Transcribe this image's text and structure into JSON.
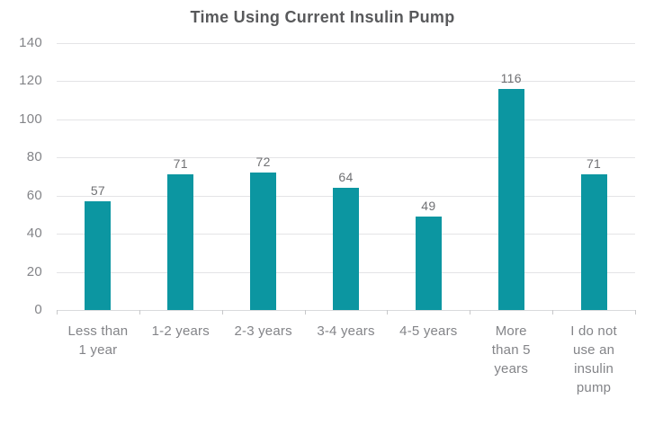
{
  "chart_data": {
    "type": "bar",
    "title": "Time Using Current Insulin Pump",
    "categories": [
      "Less than\n1 year",
      "1-2 years",
      "2-3 years",
      "3-4 years",
      "4-5 years",
      "More\nthan 5\nyears",
      "I do not\nuse an\ninsulin\npump"
    ],
    "values": [
      57,
      71,
      72,
      64,
      49,
      116,
      71
    ],
    "xlabel": "",
    "ylabel": "",
    "ylim": [
      0,
      140
    ],
    "yticks": [
      0,
      20,
      40,
      60,
      80,
      100,
      120,
      140
    ],
    "grid": true,
    "legend": false,
    "colors": {
      "bar": "#0c96a1",
      "title": "#58595b",
      "axis_label": "#838488",
      "value_label": "#707174",
      "gridline": "#e4e4e6",
      "baseline": "#d9dadc",
      "tick": "#c7c8ca",
      "background": "#ffffff"
    }
  }
}
